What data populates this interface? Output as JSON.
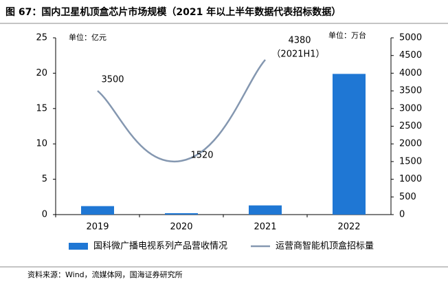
{
  "chart_data": {
    "type": "bar_line",
    "title": "图 67：国内卫星机顶盒芯片市场规模（2021 年以上半年数据代表招标数据）",
    "y_unit": "单位：亿元",
    "y2_unit": "单位：万台",
    "categories": [
      "2019",
      "2020",
      "2021",
      "2022"
    ],
    "series": [
      {
        "name": "国科微广播电视系列产品营收情况",
        "type": "bar",
        "color": "#1f77d4",
        "values": [
          1.2,
          0.2,
          1.3,
          19.9
        ]
      },
      {
        "name": "运营商智能机顶盒招标量",
        "type": "line",
        "axis": "y2",
        "color": "#8497b0",
        "values": [
          3500,
          1520,
          4380,
          null
        ]
      }
    ],
    "annotations": [
      "（2021H1）"
    ],
    "ylim": [
      0,
      25
    ],
    "yticks": [
      0,
      5,
      10,
      15,
      20,
      25
    ],
    "y2lim": [
      0,
      5000
    ],
    "y2ticks": [
      0,
      500,
      1000,
      1500,
      2000,
      2500,
      3000,
      3500,
      4000,
      4500,
      5000
    ],
    "legend": "bottom",
    "source": "资料来源：Wind，流媒体网，国海证券研究所"
  }
}
